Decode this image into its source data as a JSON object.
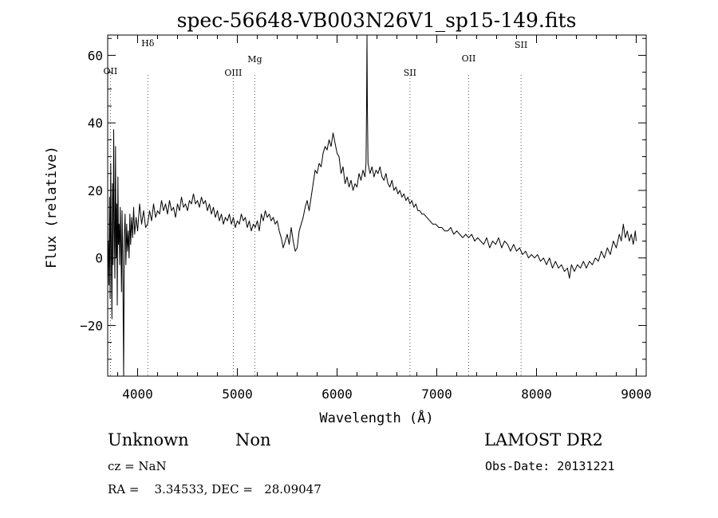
{
  "chart_data": {
    "type": "line",
    "title": "spec-56648-VB003N26V1_sp15-149.fits",
    "xlabel": "Wavelength (Å)",
    "ylabel": "Flux (relative)",
    "xlim": [
      3700,
      9100
    ],
    "ylim": [
      -35,
      66
    ],
    "x_ticks": [
      4000,
      5000,
      6000,
      7000,
      8000,
      9000
    ],
    "x_tick_labels": [
      "4000",
      "5000",
      "6000",
      "7000",
      "8000",
      "9000"
    ],
    "y_ticks": [
      -20,
      0,
      20,
      40,
      60
    ],
    "y_tick_labels": [
      "−20",
      "0",
      "20",
      "40",
      "60"
    ],
    "grid": false,
    "line_color": "#000000",
    "marker_color": "#555555",
    "series": [
      {
        "values": [
          [
            3705,
            5
          ],
          [
            3712,
            -8
          ],
          [
            3718,
            18
          ],
          [
            3724,
            -12
          ],
          [
            3730,
            28
          ],
          [
            3736,
            2
          ],
          [
            3742,
            -18
          ],
          [
            3748,
            22
          ],
          [
            3754,
            -2
          ],
          [
            3760,
            38
          ],
          [
            3766,
            8
          ],
          [
            3772,
            -6
          ],
          [
            3778,
            33
          ],
          [
            3784,
            0
          ],
          [
            3790,
            16
          ],
          [
            3796,
            -14
          ],
          [
            3802,
            24
          ],
          [
            3808,
            4
          ],
          [
            3814,
            10
          ],
          [
            3820,
            -2
          ],
          [
            3826,
            15
          ],
          [
            3832,
            5
          ],
          [
            3838,
            -10
          ],
          [
            3844,
            14
          ],
          [
            3850,
            2
          ],
          [
            3856,
            -20
          ],
          [
            3860,
            -35
          ],
          [
            3866,
            6
          ],
          [
            3874,
            13
          ],
          [
            3882,
            -2
          ],
          [
            3890,
            10
          ],
          [
            3898,
            2
          ],
          [
            3906,
            8
          ],
          [
            3914,
            0
          ],
          [
            3922,
            13
          ],
          [
            3930,
            4
          ],
          [
            3940,
            12
          ],
          [
            3950,
            6
          ],
          [
            3960,
            15
          ],
          [
            3970,
            7
          ],
          [
            3985,
            12
          ],
          [
            4000,
            8
          ],
          [
            4020,
            16
          ],
          [
            4040,
            10
          ],
          [
            4060,
            14
          ],
          [
            4080,
            9
          ],
          [
            4100,
            10
          ],
          [
            4120,
            14
          ],
          [
            4140,
            11
          ],
          [
            4160,
            16
          ],
          [
            4180,
            12
          ],
          [
            4200,
            14
          ],
          [
            4220,
            13
          ],
          [
            4240,
            17
          ],
          [
            4260,
            14
          ],
          [
            4280,
            16
          ],
          [
            4300,
            13
          ],
          [
            4320,
            17
          ],
          [
            4340,
            14
          ],
          [
            4360,
            15
          ],
          [
            4380,
            12
          ],
          [
            4400,
            16
          ],
          [
            4420,
            14
          ],
          [
            4440,
            18
          ],
          [
            4460,
            15
          ],
          [
            4480,
            16
          ],
          [
            4500,
            14
          ],
          [
            4520,
            17
          ],
          [
            4540,
            16
          ],
          [
            4560,
            19
          ],
          [
            4580,
            16
          ],
          [
            4600,
            17
          ],
          [
            4620,
            15
          ],
          [
            4640,
            18
          ],
          [
            4660,
            16
          ],
          [
            4680,
            17
          ],
          [
            4700,
            14
          ],
          [
            4720,
            16
          ],
          [
            4740,
            13
          ],
          [
            4760,
            15
          ],
          [
            4780,
            12
          ],
          [
            4800,
            14
          ],
          [
            4820,
            11
          ],
          [
            4840,
            13
          ],
          [
            4860,
            10
          ],
          [
            4880,
            12
          ],
          [
            4900,
            11
          ],
          [
            4920,
            13
          ],
          [
            4940,
            10
          ],
          [
            4960,
            12
          ],
          [
            4980,
            9
          ],
          [
            5000,
            11
          ],
          [
            5020,
            10
          ],
          [
            5040,
            13
          ],
          [
            5060,
            11
          ],
          [
            5080,
            12
          ],
          [
            5100,
            9
          ],
          [
            5120,
            11
          ],
          [
            5140,
            8
          ],
          [
            5160,
            10
          ],
          [
            5180,
            9
          ],
          [
            5200,
            11
          ],
          [
            5220,
            8
          ],
          [
            5240,
            13
          ],
          [
            5260,
            11
          ],
          [
            5280,
            14
          ],
          [
            5300,
            12
          ],
          [
            5320,
            13
          ],
          [
            5340,
            11
          ],
          [
            5360,
            12
          ],
          [
            5380,
            10
          ],
          [
            5400,
            11
          ],
          [
            5420,
            8
          ],
          [
            5440,
            6
          ],
          [
            5460,
            3
          ],
          [
            5480,
            5
          ],
          [
            5500,
            7
          ],
          [
            5520,
            4
          ],
          [
            5540,
            9
          ],
          [
            5560,
            5
          ],
          [
            5580,
            2
          ],
          [
            5600,
            3
          ],
          [
            5620,
            8
          ],
          [
            5640,
            10
          ],
          [
            5660,
            12
          ],
          [
            5680,
            15
          ],
          [
            5700,
            17
          ],
          [
            5720,
            14
          ],
          [
            5740,
            18
          ],
          [
            5760,
            22
          ],
          [
            5780,
            26
          ],
          [
            5800,
            25
          ],
          [
            5820,
            28
          ],
          [
            5840,
            27
          ],
          [
            5860,
            31
          ],
          [
            5880,
            33
          ],
          [
            5900,
            32
          ],
          [
            5920,
            35
          ],
          [
            5940,
            33
          ],
          [
            5960,
            37
          ],
          [
            5980,
            34
          ],
          [
            6000,
            31
          ],
          [
            6020,
            30
          ],
          [
            6040,
            25
          ],
          [
            6060,
            27
          ],
          [
            6080,
            22
          ],
          [
            6100,
            24
          ],
          [
            6120,
            21
          ],
          [
            6140,
            23
          ],
          [
            6160,
            20
          ],
          [
            6180,
            22
          ],
          [
            6200,
            21
          ],
          [
            6220,
            25
          ],
          [
            6240,
            23
          ],
          [
            6260,
            26
          ],
          [
            6280,
            24
          ],
          [
            6290,
            28
          ],
          [
            6296,
            45
          ],
          [
            6300,
            66
          ],
          [
            6304,
            45
          ],
          [
            6310,
            28
          ],
          [
            6330,
            25
          ],
          [
            6350,
            27
          ],
          [
            6370,
            24
          ],
          [
            6390,
            26
          ],
          [
            6410,
            25
          ],
          [
            6430,
            27
          ],
          [
            6450,
            24
          ],
          [
            6470,
            23
          ],
          [
            6490,
            25
          ],
          [
            6510,
            22
          ],
          [
            6530,
            21
          ],
          [
            6550,
            23
          ],
          [
            6570,
            20
          ],
          [
            6590,
            21
          ],
          [
            6610,
            19
          ],
          [
            6630,
            20
          ],
          [
            6650,
            18
          ],
          [
            6670,
            19
          ],
          [
            6690,
            17
          ],
          [
            6710,
            18
          ],
          [
            6730,
            16
          ],
          [
            6750,
            17
          ],
          [
            6770,
            15
          ],
          [
            6790,
            16
          ],
          [
            6810,
            14
          ],
          [
            6830,
            14
          ],
          [
            6850,
            13
          ],
          [
            6870,
            13
          ],
          [
            6900,
            12
          ],
          [
            6930,
            11
          ],
          [
            6960,
            10
          ],
          [
            6990,
            10
          ],
          [
            7020,
            9
          ],
          [
            7050,
            9
          ],
          [
            7080,
            8
          ],
          [
            7110,
            8
          ],
          [
            7140,
            9
          ],
          [
            7170,
            7
          ],
          [
            7200,
            8
          ],
          [
            7230,
            7
          ],
          [
            7260,
            6
          ],
          [
            7290,
            7
          ],
          [
            7320,
            6
          ],
          [
            7350,
            7
          ],
          [
            7380,
            5
          ],
          [
            7410,
            6
          ],
          [
            7440,
            5
          ],
          [
            7470,
            4
          ],
          [
            7500,
            6
          ],
          [
            7530,
            3
          ],
          [
            7560,
            5
          ],
          [
            7590,
            4
          ],
          [
            7620,
            6
          ],
          [
            7650,
            3
          ],
          [
            7680,
            5
          ],
          [
            7710,
            4
          ],
          [
            7740,
            2
          ],
          [
            7770,
            4
          ],
          [
            7800,
            2
          ],
          [
            7830,
            3
          ],
          [
            7860,
            1
          ],
          [
            7890,
            2
          ],
          [
            7920,
            0
          ],
          [
            7950,
            1
          ],
          [
            7980,
            0
          ],
          [
            8010,
            1
          ],
          [
            8040,
            -1
          ],
          [
            8070,
            0
          ],
          [
            8100,
            -2
          ],
          [
            8130,
            0
          ],
          [
            8160,
            -3
          ],
          [
            8190,
            -1
          ],
          [
            8220,
            -3
          ],
          [
            8250,
            -2
          ],
          [
            8280,
            -4
          ],
          [
            8310,
            -3
          ],
          [
            8330,
            -6
          ],
          [
            8350,
            -2
          ],
          [
            8380,
            -4
          ],
          [
            8410,
            -2
          ],
          [
            8440,
            -3
          ],
          [
            8470,
            -1
          ],
          [
            8500,
            -3
          ],
          [
            8530,
            -1
          ],
          [
            8560,
            -2
          ],
          [
            8590,
            0
          ],
          [
            8620,
            -1
          ],
          [
            8650,
            2
          ],
          [
            8680,
            0
          ],
          [
            8710,
            3
          ],
          [
            8740,
            1
          ],
          [
            8770,
            5
          ],
          [
            8800,
            3
          ],
          [
            8830,
            7
          ],
          [
            8850,
            5
          ],
          [
            8870,
            10
          ],
          [
            8890,
            6
          ],
          [
            8910,
            8
          ],
          [
            8930,
            5
          ],
          [
            8950,
            7
          ],
          [
            8970,
            4
          ],
          [
            8990,
            8
          ],
          [
            9000,
            5
          ]
        ]
      }
    ],
    "line_markers": [
      {
        "label": "OII",
        "x": 3727
      },
      {
        "label": "Hδ",
        "x": 4102
      },
      {
        "label": "OIII",
        "x": 4959
      },
      {
        "label": "Mg",
        "x": 5175
      },
      {
        "label": "SII",
        "x": 6731
      },
      {
        "label": "OII",
        "x": 7320
      },
      {
        "label": "SII",
        "x": 7845
      }
    ]
  },
  "info": {
    "class_label": "Unknown",
    "subclass_label": "Non",
    "survey_label": "LAMOST DR2",
    "cz_label": "cz = NaN",
    "obs_date_label": "Obs-Date: 20131221",
    "ra_dec_label": "RA =    3.34533, DEC =   28.09047"
  }
}
